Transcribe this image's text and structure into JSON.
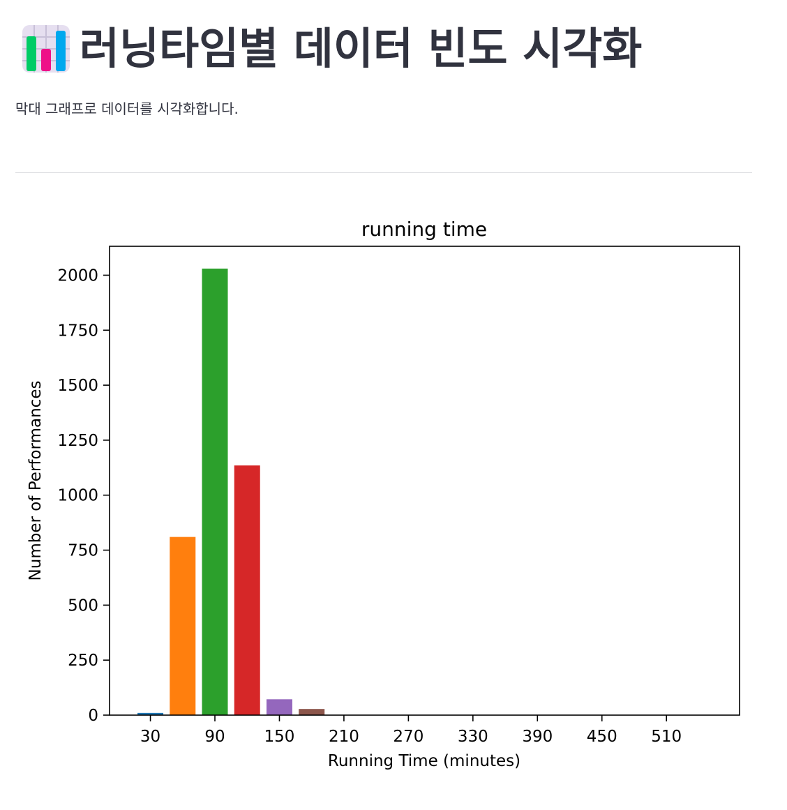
{
  "header": {
    "icon": "bar-chart-icon",
    "title": "러닝타임별 데이터 빈도 시각화"
  },
  "subtitle": "막대 그래프로 데이터를 시각화합니다.",
  "chart_data": {
    "type": "bar",
    "title": "running time",
    "xlabel": "Running Time (minutes)",
    "ylabel": "Number of Performances",
    "categories": [
      "30",
      "60",
      "90",
      "120",
      "150",
      "180"
    ],
    "x": [
      30,
      60,
      90,
      120,
      150,
      180
    ],
    "values": [
      10,
      810,
      2030,
      1135,
      72,
      28
    ],
    "colors": [
      "#1f77b4",
      "#ff7f0e",
      "#2ca02c",
      "#d62728",
      "#9467bd",
      "#8c564b"
    ],
    "xticks": [
      "30",
      "90",
      "150",
      "210",
      "270",
      "330",
      "390",
      "450",
      "510"
    ],
    "xtick_values": [
      30,
      90,
      150,
      210,
      270,
      330,
      390,
      450,
      510
    ],
    "yticks": [
      "0",
      "250",
      "500",
      "750",
      "1000",
      "1250",
      "1500",
      "1750",
      "2000"
    ],
    "ytick_values": [
      0,
      250,
      500,
      750,
      1000,
      1250,
      1500,
      1750,
      2000
    ],
    "xlim": [
      -8,
      578
    ],
    "ylim": [
      0,
      2131.5
    ],
    "grid": false,
    "legend": false
  }
}
